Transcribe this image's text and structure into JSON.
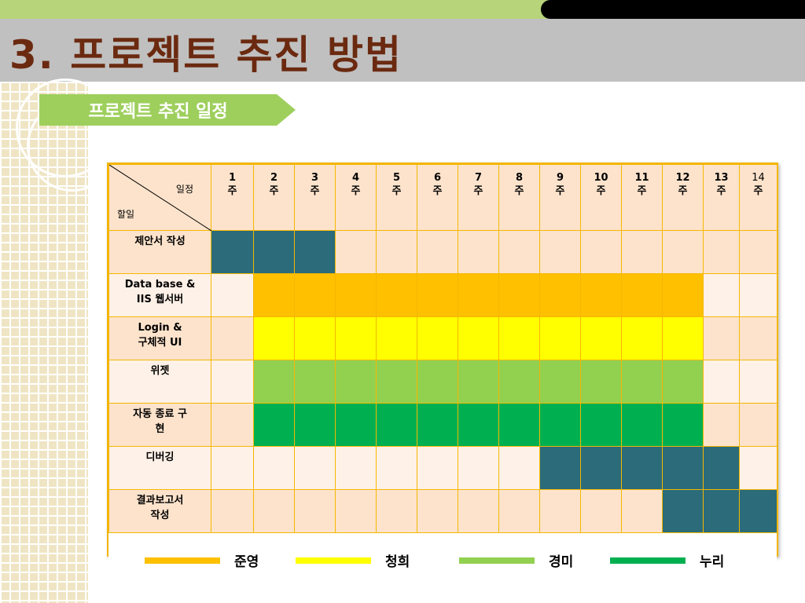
{
  "title": "3. 프로젝트 추진 방법",
  "subtitle": "프로젝트 추진 일정",
  "table": {
    "corner_top": "일정",
    "corner_bottom": "할일",
    "weeks": [
      {
        "num": "1",
        "unit": "주"
      },
      {
        "num": "2",
        "unit": "주"
      },
      {
        "num": "3",
        "unit": "주"
      },
      {
        "num": "4",
        "unit": "주"
      },
      {
        "num": "5",
        "unit": "주"
      },
      {
        "num": "6",
        "unit": "주"
      },
      {
        "num": "7",
        "unit": "주"
      },
      {
        "num": "8",
        "unit": "주"
      },
      {
        "num": "9",
        "unit": "주"
      },
      {
        "num": "10",
        "unit": "주"
      },
      {
        "num": "11",
        "unit": "주"
      },
      {
        "num": "12",
        "unit": "주"
      },
      {
        "num": "13",
        "unit": "주"
      },
      {
        "num": "14",
        "unit": "주"
      }
    ],
    "tasks": [
      {
        "line1": "제안서 작성",
        "line2": "",
        "start": 1,
        "end": 3,
        "color": "#2b6b7a"
      },
      {
        "line1": "Data base &",
        "line2": "IIS 웹서버",
        "start": 2,
        "end": 12,
        "color": "#ffc000"
      },
      {
        "line1": "Login &",
        "line2": "구체적 UI",
        "start": 2,
        "end": 12,
        "color": "#ffff00"
      },
      {
        "line1": "위젯",
        "line2": "",
        "start": 2,
        "end": 12,
        "color": "#92d050"
      },
      {
        "line1": "자동 종료 구",
        "line2": "현",
        "start": 2,
        "end": 12,
        "color": "#00b050"
      },
      {
        "line1": "디버깅",
        "line2": "",
        "start": 9,
        "end": 13,
        "color": "#2b6b7a"
      },
      {
        "line1": "결과보고서",
        "line2": "작성",
        "start": 12,
        "end": 14,
        "color": "#2b6b7a"
      }
    ]
  },
  "legend": [
    {
      "label": "준영",
      "color": "#ffc000"
    },
    {
      "label": "청희",
      "color": "#ffff00"
    },
    {
      "label": "경미",
      "color": "#92d050"
    },
    {
      "label": "누리",
      "color": "#00b050"
    }
  ]
}
